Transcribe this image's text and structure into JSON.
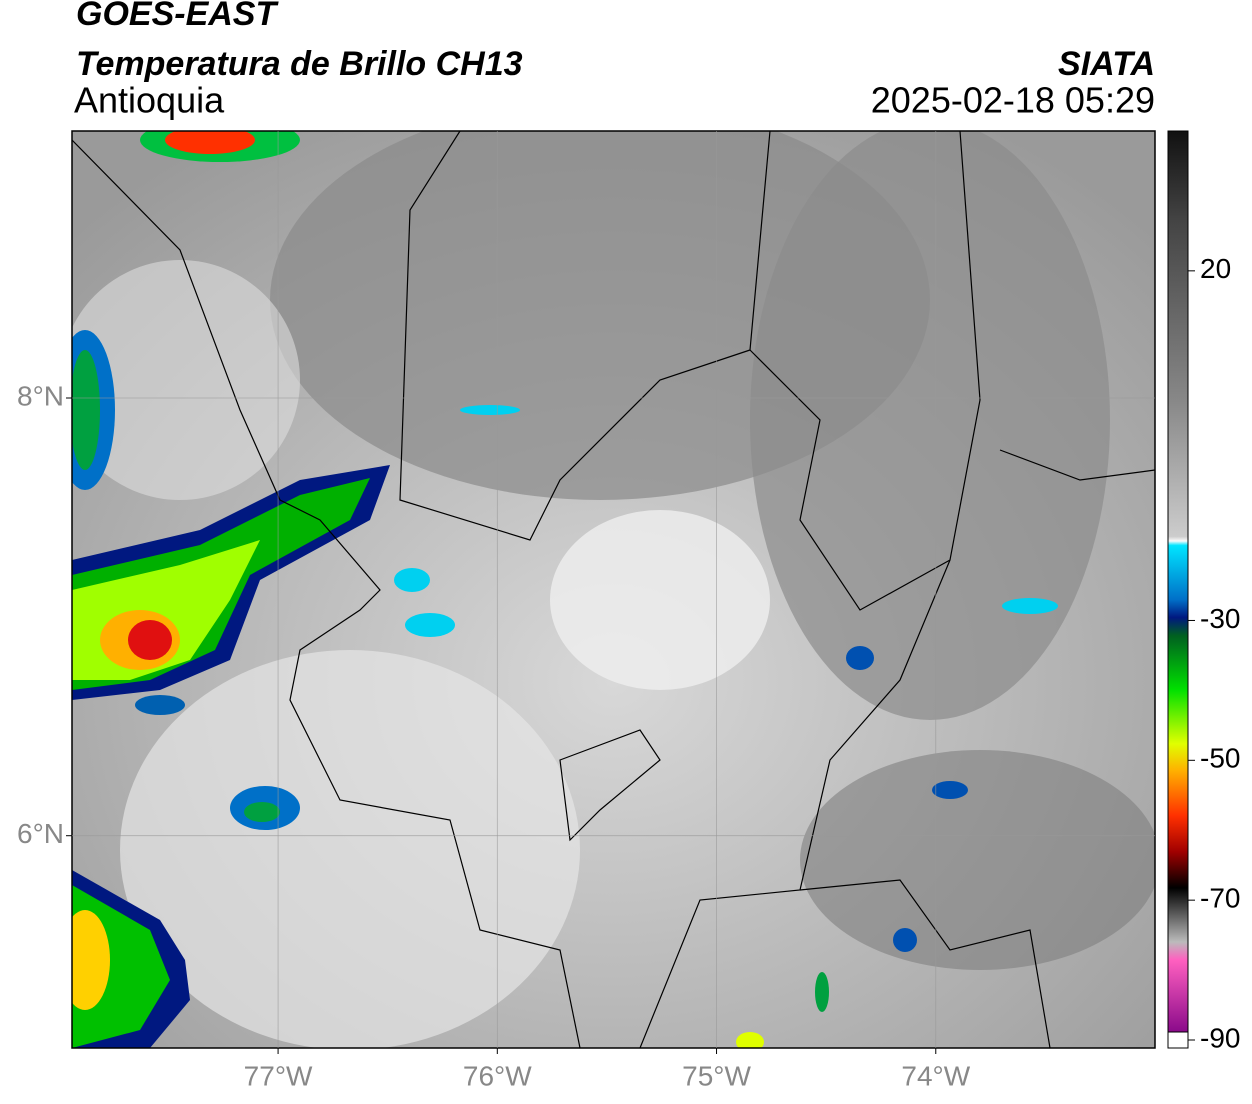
{
  "header": {
    "satellite": "GOES-EAST",
    "product": "Temperatura de Brillo CH13",
    "region": "Antioquia",
    "agency": "SIATA",
    "timestamp": "2025-02-18 05:29"
  },
  "map": {
    "xlim": [
      -77.94,
      -73.0
    ],
    "ylim": [
      5.03,
      9.22
    ],
    "xticks": [
      {
        "value": -77,
        "label": "77°W"
      },
      {
        "value": -76,
        "label": "76°W"
      },
      {
        "value": -75,
        "label": "75°W"
      },
      {
        "value": -74,
        "label": "74°W"
      }
    ],
    "yticks": [
      {
        "value": 8,
        "label": "8°N"
      },
      {
        "value": 6,
        "label": "6°N"
      }
    ],
    "grid": true
  },
  "colorbar": {
    "lim": [
      -90,
      40
    ],
    "ticks": [
      20,
      -30,
      -50,
      -70,
      -90
    ]
  }
}
